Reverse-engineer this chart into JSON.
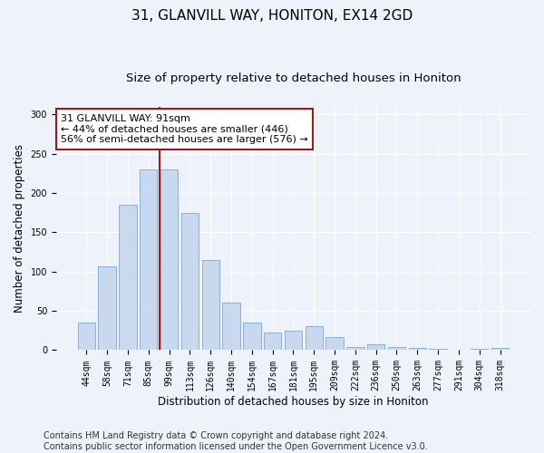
{
  "title": "31, GLANVILL WAY, HONITON, EX14 2GD",
  "subtitle": "Size of property relative to detached houses in Honiton",
  "xlabel": "Distribution of detached houses by size in Honiton",
  "ylabel": "Number of detached properties",
  "categories": [
    "44sqm",
    "58sqm",
    "71sqm",
    "85sqm",
    "99sqm",
    "113sqm",
    "126sqm",
    "140sqm",
    "154sqm",
    "167sqm",
    "181sqm",
    "195sqm",
    "209sqm",
    "222sqm",
    "236sqm",
    "250sqm",
    "263sqm",
    "277sqm",
    "291sqm",
    "304sqm",
    "318sqm"
  ],
  "values": [
    35,
    107,
    185,
    230,
    230,
    175,
    115,
    60,
    35,
    23,
    25,
    30,
    17,
    4,
    7,
    4,
    3,
    2,
    0,
    2,
    3
  ],
  "bar_color": "#c8d9ef",
  "bar_edge_color": "#7baad4",
  "vline_color": "#9b1a1a",
  "vline_x_index": 3.55,
  "annotation_text": "31 GLANVILL WAY: 91sqm\n← 44% of detached houses are smaller (446)\n56% of semi-detached houses are larger (576) →",
  "annotation_box_facecolor": "#ffffff",
  "annotation_box_edgecolor": "#9b1a1a",
  "ylim": [
    0,
    310
  ],
  "yticks": [
    0,
    50,
    100,
    150,
    200,
    250,
    300
  ],
  "footer": "Contains HM Land Registry data © Crown copyright and database right 2024.\nContains public sector information licensed under the Open Government Licence v3.0.",
  "bg_color": "#eef2fa",
  "grid_color": "#ffffff",
  "title_fontsize": 11,
  "subtitle_fontsize": 9.5,
  "axis_label_fontsize": 8.5,
  "tick_fontsize": 7,
  "footer_fontsize": 7,
  "annotation_fontsize": 8
}
